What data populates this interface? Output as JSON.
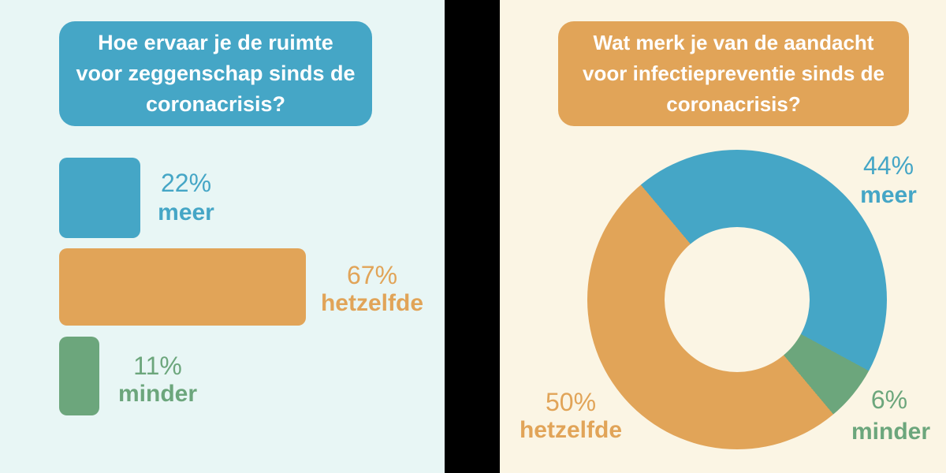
{
  "left_panel": {
    "background": "#e8f6f5",
    "question": "Hoe ervaar je de ruimte voor zeggenschap sinds de coronacrisis?",
    "question_lines": [
      "Hoe ervaar je de ruimte",
      "voor zeggenschap sinds de",
      "coronacrisis?"
    ],
    "question_box_color": "#45a6c6",
    "question_text_color": "#ffffff",
    "bars": [
      {
        "label": "meer",
        "percent_text": "22%",
        "value": 22,
        "color": "#45a6c6"
      },
      {
        "label": "hetzelfde",
        "percent_text": "67%",
        "value": 67,
        "color": "#e1a458"
      },
      {
        "label": "minder",
        "percent_text": "11%",
        "value": 11,
        "color": "#6ca67c"
      }
    ]
  },
  "right_panel": {
    "background": "#fbf5e4",
    "question": "Wat merk je van de aandacht voor infectiepreventie sinds de coronacrisis?",
    "question_lines": [
      "Wat merk je van de aandacht",
      "voor infectiepreventie sinds de",
      "coronacrisis?"
    ],
    "question_box_color": "#e1a458",
    "question_text_color": "#ffffff",
    "donut_start_deg": -40,
    "donut_segments_clockwise": [
      {
        "label": "meer",
        "value": 44,
        "color": "#45a6c6"
      },
      {
        "label": "minder",
        "value": 6,
        "color": "#6ca67c"
      },
      {
        "label": "hetzelfde",
        "value": 50,
        "color": "#e1a458"
      }
    ],
    "slices": [
      {
        "label": "meer",
        "percent_text": "44%",
        "value": 44,
        "color": "#45a6c6"
      },
      {
        "label": "hetzelfde",
        "percent_text": "50%",
        "value": 50,
        "color": "#e1a458"
      },
      {
        "label": "minder",
        "percent_text": "6%",
        "value": 6,
        "color": "#6ca67c"
      }
    ]
  },
  "divider_color": "#000000",
  "chart_data": [
    {
      "type": "bar",
      "orientation": "horizontal",
      "title": "Hoe ervaar je de ruimte voor zeggenschap sinds de coronacrisis?",
      "categories": [
        "meer",
        "hetzelfde",
        "minder"
      ],
      "values": [
        22,
        67,
        11
      ],
      "unit": "%",
      "colors": [
        "#45a6c6",
        "#e1a458",
        "#6ca67c"
      ],
      "value_labels": [
        "22%",
        "67%",
        "11%"
      ],
      "xlabel": "",
      "ylabel": "",
      "axes_visible": false,
      "grid": false,
      "legend": "none"
    },
    {
      "type": "pie",
      "subtype": "donut",
      "title": "Wat merk je van de aandacht voor infectiepreventie sinds de coronacrisis?",
      "categories": [
        "meer",
        "hetzelfde",
        "minder"
      ],
      "values": [
        44,
        50,
        6
      ],
      "unit": "%",
      "colors": [
        "#45a6c6",
        "#e1a458",
        "#6ca67c"
      ],
      "value_labels": [
        "44%",
        "50%",
        "6%"
      ],
      "start_angle_deg": -40,
      "direction": "clockwise",
      "slice_order_clockwise": [
        "meer",
        "minder",
        "hetzelfde"
      ],
      "inner_radius_ratio": 0.48,
      "legend": "none"
    }
  ]
}
